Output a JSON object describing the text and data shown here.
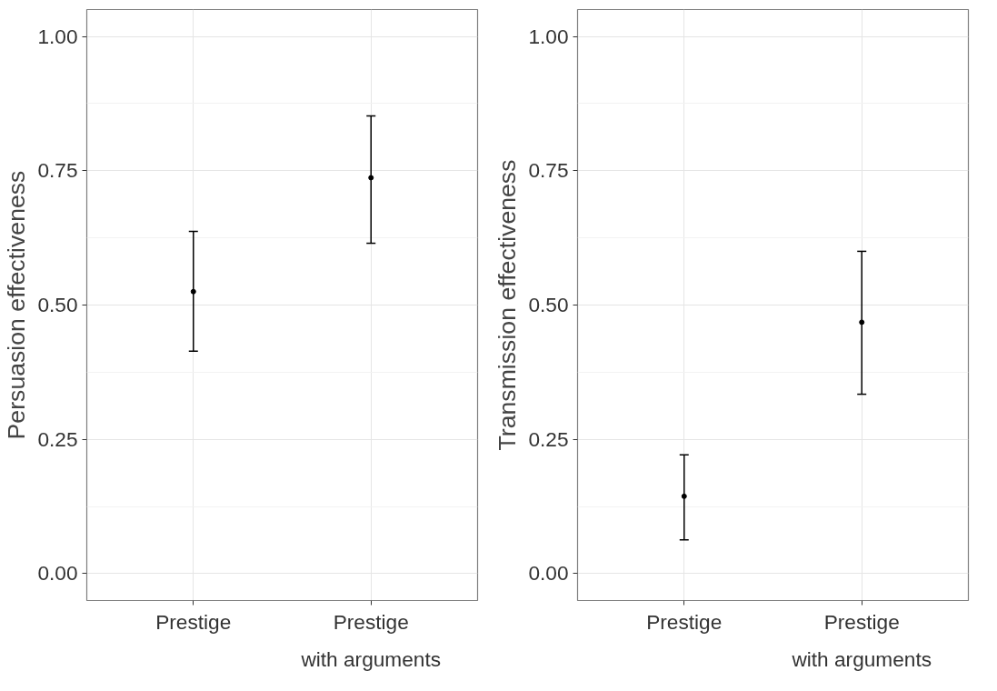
{
  "chart_data": [
    {
      "type": "scatter",
      "ylabel": "Persuasion effectiveness",
      "categories": [
        "Prestige",
        "Prestige\nwith arguments"
      ],
      "series": [
        {
          "color": "#000000",
          "values": [
            0.525,
            0.737
          ],
          "errors": [
            [
              0.414,
              0.637
            ],
            [
              0.615,
              0.852
            ]
          ]
        }
      ],
      "ylim": [
        -0.05,
        1.05
      ],
      "yticks": [
        {
          "value": 0,
          "label": "0.00"
        },
        {
          "value": 0.25,
          "label": "0.25"
        },
        {
          "value": 0.5,
          "label": "0.50"
        },
        {
          "value": 0.75,
          "label": "0.75"
        },
        {
          "value": 1,
          "label": "1.00"
        }
      ],
      "grid": true,
      "marker": "circle"
    },
    {
      "type": "scatter",
      "ylabel": "Transmission effectiveness",
      "categories": [
        "Prestige",
        "Prestige\nwith arguments"
      ],
      "series": [
        {
          "color": "#000000",
          "values": [
            0.144,
            0.468
          ],
          "errors": [
            [
              0.063,
              0.221
            ],
            [
              0.334,
              0.6
            ]
          ]
        }
      ],
      "ylim": [
        -0.05,
        1.05
      ],
      "yticks": [
        {
          "value": 0,
          "label": "0.00"
        },
        {
          "value": 0.25,
          "label": "0.25"
        },
        {
          "value": 0.5,
          "label": "0.50"
        },
        {
          "value": 0.75,
          "label": "0.75"
        },
        {
          "value": 1,
          "label": "1.00"
        }
      ],
      "grid": true,
      "marker": "circle"
    }
  ]
}
